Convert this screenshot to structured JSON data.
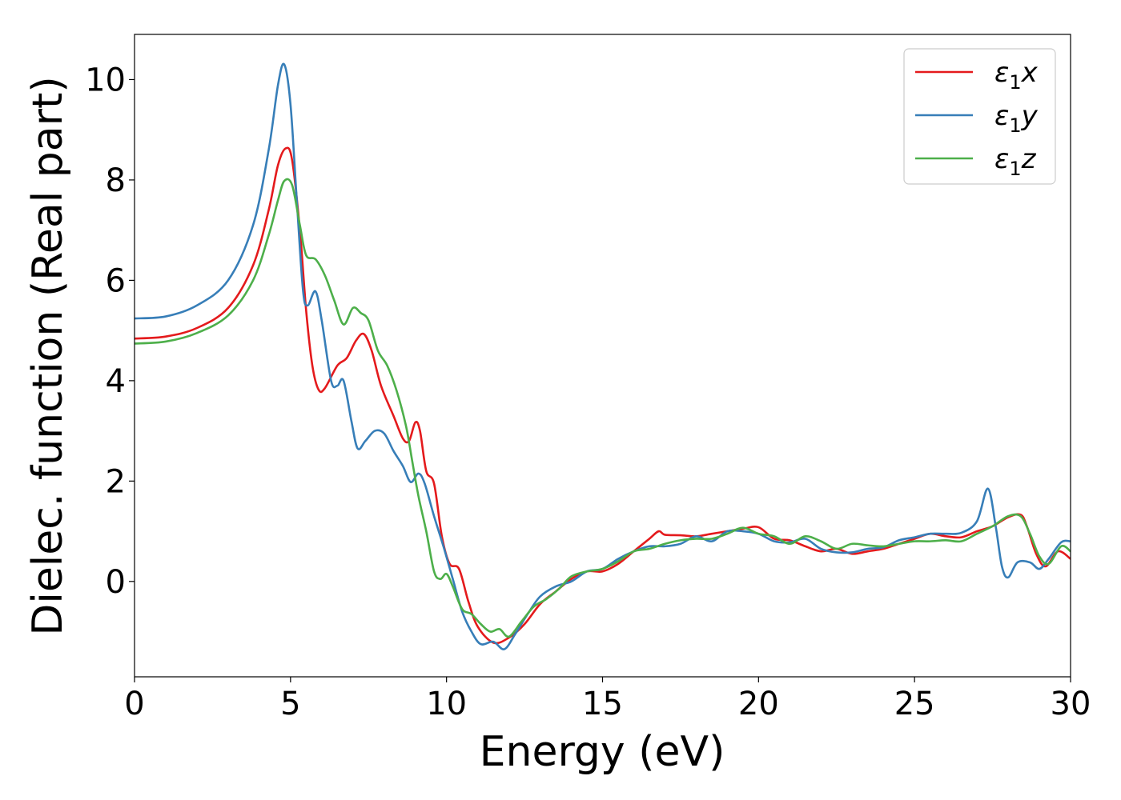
{
  "chart_data": {
    "type": "line",
    "xlabel": "Energy (eV)",
    "ylabel": "Dielec. function (Real part)",
    "xlim": [
      0,
      30
    ],
    "ylim": [
      -1.9,
      10.9
    ],
    "xticks": [
      0,
      5,
      10,
      15,
      20,
      25,
      30
    ],
    "yticks": [
      0,
      2,
      4,
      6,
      8,
      10
    ],
    "grid": false,
    "legend_position": "top-right",
    "colors": {
      "x": "#e41a1c",
      "y": "#377eb8",
      "z": "#4daf4a"
    },
    "series": [
      {
        "name": "ε₁x",
        "legend_main": "ε",
        "legend_sub": "1",
        "legend_axis": "x",
        "color": "#e41a1c",
        "points": [
          [
            0,
            4.84
          ],
          [
            1,
            4.88
          ],
          [
            2,
            5.05
          ],
          [
            3,
            5.45
          ],
          [
            3.8,
            6.3
          ],
          [
            4.3,
            7.4
          ],
          [
            4.6,
            8.3
          ],
          [
            4.85,
            8.63
          ],
          [
            5.05,
            8.4
          ],
          [
            5.3,
            7.0
          ],
          [
            5.5,
            5.4
          ],
          [
            5.7,
            4.3
          ],
          [
            5.9,
            3.82
          ],
          [
            6.1,
            3.85
          ],
          [
            6.5,
            4.3
          ],
          [
            6.8,
            4.45
          ],
          [
            7.1,
            4.8
          ],
          [
            7.35,
            4.93
          ],
          [
            7.6,
            4.6
          ],
          [
            7.9,
            3.9
          ],
          [
            8.3,
            3.3
          ],
          [
            8.6,
            2.85
          ],
          [
            8.8,
            2.8
          ],
          [
            9.0,
            3.17
          ],
          [
            9.15,
            3.0
          ],
          [
            9.35,
            2.2
          ],
          [
            9.6,
            1.95
          ],
          [
            9.85,
            0.9
          ],
          [
            10.1,
            0.35
          ],
          [
            10.4,
            0.25
          ],
          [
            10.7,
            -0.4
          ],
          [
            11.0,
            -0.9
          ],
          [
            11.5,
            -1.22
          ],
          [
            12.0,
            -1.12
          ],
          [
            12.5,
            -0.85
          ],
          [
            13.0,
            -0.45
          ],
          [
            13.5,
            -0.2
          ],
          [
            14.0,
            0.05
          ],
          [
            14.5,
            0.2
          ],
          [
            15.0,
            0.2
          ],
          [
            15.5,
            0.35
          ],
          [
            16.0,
            0.6
          ],
          [
            16.5,
            0.85
          ],
          [
            16.8,
            1.0
          ],
          [
            17.0,
            0.93
          ],
          [
            17.5,
            0.92
          ],
          [
            18.0,
            0.9
          ],
          [
            18.5,
            0.95
          ],
          [
            19.0,
            1.0
          ],
          [
            19.5,
            1.05
          ],
          [
            20.0,
            1.08
          ],
          [
            20.5,
            0.85
          ],
          [
            21.0,
            0.82
          ],
          [
            21.5,
            0.7
          ],
          [
            22.0,
            0.6
          ],
          [
            22.5,
            0.65
          ],
          [
            23.0,
            0.55
          ],
          [
            23.5,
            0.6
          ],
          [
            24.0,
            0.65
          ],
          [
            24.5,
            0.75
          ],
          [
            25.0,
            0.85
          ],
          [
            25.5,
            0.95
          ],
          [
            26.0,
            0.9
          ],
          [
            26.5,
            0.88
          ],
          [
            27.0,
            1.0
          ],
          [
            27.5,
            1.1
          ],
          [
            28.0,
            1.28
          ],
          [
            28.4,
            1.33
          ],
          [
            28.6,
            1.1
          ],
          [
            28.9,
            0.55
          ],
          [
            29.2,
            0.3
          ],
          [
            29.6,
            0.6
          ],
          [
            30.0,
            0.45
          ]
        ]
      },
      {
        "name": "ε₁y",
        "legend_main": "ε",
        "legend_sub": "1",
        "legend_axis": "y",
        "color": "#377eb8",
        "points": [
          [
            0,
            5.24
          ],
          [
            1,
            5.28
          ],
          [
            2,
            5.5
          ],
          [
            3,
            6.0
          ],
          [
            3.8,
            7.1
          ],
          [
            4.3,
            8.6
          ],
          [
            4.6,
            9.9
          ],
          [
            4.8,
            10.3
          ],
          [
            5.0,
            9.5
          ],
          [
            5.2,
            7.6
          ],
          [
            5.4,
            5.8
          ],
          [
            5.55,
            5.5
          ],
          [
            5.8,
            5.78
          ],
          [
            6.0,
            5.2
          ],
          [
            6.3,
            4.0
          ],
          [
            6.5,
            3.9
          ],
          [
            6.7,
            4.0
          ],
          [
            6.95,
            3.2
          ],
          [
            7.15,
            2.65
          ],
          [
            7.4,
            2.8
          ],
          [
            7.7,
            3.0
          ],
          [
            8.0,
            2.95
          ],
          [
            8.3,
            2.6
          ],
          [
            8.6,
            2.3
          ],
          [
            8.85,
            1.98
          ],
          [
            9.1,
            2.15
          ],
          [
            9.3,
            1.95
          ],
          [
            9.6,
            1.3
          ],
          [
            9.9,
            0.7
          ],
          [
            10.2,
            0.05
          ],
          [
            10.5,
            -0.6
          ],
          [
            10.8,
            -1.0
          ],
          [
            11.1,
            -1.25
          ],
          [
            11.5,
            -1.2
          ],
          [
            11.85,
            -1.35
          ],
          [
            12.2,
            -1.05
          ],
          [
            12.6,
            -0.65
          ],
          [
            13.0,
            -0.3
          ],
          [
            13.5,
            -0.1
          ],
          [
            14.0,
            0.0
          ],
          [
            14.5,
            0.2
          ],
          [
            15.0,
            0.25
          ],
          [
            15.5,
            0.45
          ],
          [
            16.0,
            0.6
          ],
          [
            16.5,
            0.7
          ],
          [
            17.0,
            0.7
          ],
          [
            17.5,
            0.75
          ],
          [
            18.0,
            0.9
          ],
          [
            18.5,
            0.8
          ],
          [
            19.0,
            1.0
          ],
          [
            19.5,
            1.0
          ],
          [
            20.0,
            0.95
          ],
          [
            20.5,
            0.8
          ],
          [
            21.0,
            0.78
          ],
          [
            21.5,
            0.85
          ],
          [
            22.0,
            0.65
          ],
          [
            22.5,
            0.58
          ],
          [
            23.0,
            0.58
          ],
          [
            23.5,
            0.65
          ],
          [
            24.0,
            0.68
          ],
          [
            24.5,
            0.82
          ],
          [
            25.0,
            0.88
          ],
          [
            25.5,
            0.95
          ],
          [
            26.0,
            0.95
          ],
          [
            26.5,
            0.97
          ],
          [
            27.0,
            1.2
          ],
          [
            27.35,
            1.85
          ],
          [
            27.6,
            1.1
          ],
          [
            27.8,
            0.3
          ],
          [
            28.0,
            0.08
          ],
          [
            28.3,
            0.38
          ],
          [
            28.7,
            0.38
          ],
          [
            29.0,
            0.25
          ],
          [
            29.3,
            0.45
          ],
          [
            29.7,
            0.78
          ],
          [
            30.0,
            0.8
          ]
        ]
      },
      {
        "name": "ε₁z",
        "legend_main": "ε",
        "legend_sub": "1",
        "legend_axis": "z",
        "color": "#4daf4a",
        "points": [
          [
            0,
            4.74
          ],
          [
            1,
            4.78
          ],
          [
            2,
            4.95
          ],
          [
            3,
            5.3
          ],
          [
            3.8,
            6.0
          ],
          [
            4.3,
            6.9
          ],
          [
            4.6,
            7.6
          ],
          [
            4.8,
            7.98
          ],
          [
            5.05,
            7.9
          ],
          [
            5.3,
            7.1
          ],
          [
            5.5,
            6.5
          ],
          [
            5.8,
            6.42
          ],
          [
            6.1,
            6.1
          ],
          [
            6.4,
            5.6
          ],
          [
            6.7,
            5.12
          ],
          [
            7.0,
            5.45
          ],
          [
            7.25,
            5.35
          ],
          [
            7.5,
            5.2
          ],
          [
            7.8,
            4.6
          ],
          [
            8.1,
            4.3
          ],
          [
            8.4,
            3.8
          ],
          [
            8.7,
            3.1
          ],
          [
            8.9,
            2.4
          ],
          [
            9.1,
            1.7
          ],
          [
            9.35,
            1.0
          ],
          [
            9.6,
            0.2
          ],
          [
            9.8,
            0.05
          ],
          [
            10.0,
            0.15
          ],
          [
            10.2,
            -0.1
          ],
          [
            10.5,
            -0.55
          ],
          [
            10.8,
            -0.65
          ],
          [
            11.1,
            -0.85
          ],
          [
            11.4,
            -1.0
          ],
          [
            11.7,
            -0.95
          ],
          [
            12.0,
            -1.1
          ],
          [
            12.4,
            -0.8
          ],
          [
            12.8,
            -0.5
          ],
          [
            13.2,
            -0.35
          ],
          [
            13.6,
            -0.15
          ],
          [
            14.0,
            0.1
          ],
          [
            14.5,
            0.2
          ],
          [
            15.0,
            0.25
          ],
          [
            15.5,
            0.4
          ],
          [
            16.0,
            0.6
          ],
          [
            16.5,
            0.65
          ],
          [
            17.0,
            0.75
          ],
          [
            17.5,
            0.82
          ],
          [
            18.0,
            0.85
          ],
          [
            18.5,
            0.85
          ],
          [
            19.0,
            0.95
          ],
          [
            19.5,
            1.07
          ],
          [
            20.0,
            0.95
          ],
          [
            20.5,
            0.9
          ],
          [
            21.0,
            0.75
          ],
          [
            21.5,
            0.9
          ],
          [
            22.0,
            0.8
          ],
          [
            22.5,
            0.65
          ],
          [
            23.0,
            0.75
          ],
          [
            23.5,
            0.72
          ],
          [
            24.0,
            0.7
          ],
          [
            24.5,
            0.75
          ],
          [
            25.0,
            0.8
          ],
          [
            25.5,
            0.8
          ],
          [
            26.0,
            0.82
          ],
          [
            26.5,
            0.8
          ],
          [
            27.0,
            0.95
          ],
          [
            27.5,
            1.1
          ],
          [
            28.0,
            1.3
          ],
          [
            28.4,
            1.3
          ],
          [
            28.7,
            0.95
          ],
          [
            29.0,
            0.5
          ],
          [
            29.3,
            0.35
          ],
          [
            29.7,
            0.7
          ],
          [
            30.0,
            0.6
          ]
        ]
      }
    ]
  }
}
